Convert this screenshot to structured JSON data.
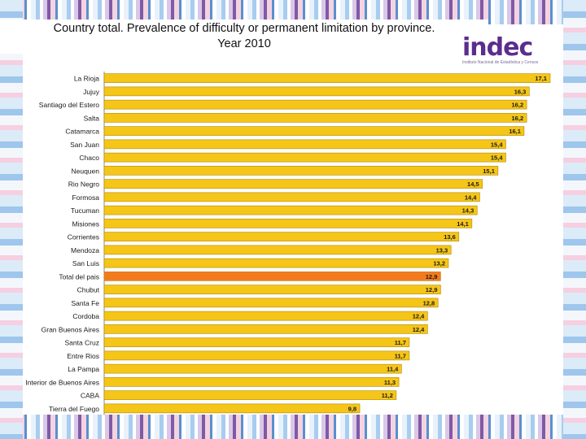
{
  "title_line1": "Country total. Prevalence of difficulty or permanent  limitation by province.",
  "title_line2": "Year 2010",
  "logo": {
    "text": "indec",
    "subtitle": "Instituto Nacional de Estadística y Censos"
  },
  "colors": {
    "bar": "#f5c518",
    "highlight": "#f47a20",
    "bar_border": "#b08a00"
  },
  "chart_data": {
    "type": "bar",
    "orientation": "horizontal",
    "title": "Country total. Prevalence of difficulty or permanent  limitation by province. Year 2010",
    "categories": [
      "La Rioja",
      "Jujuy",
      "Santiago del Estero",
      "Salta",
      "Catamarca",
      "San Juan",
      "Chaco",
      "Neuquen",
      "Rio Negro",
      "Formosa",
      "Tucuman",
      "Misiones",
      "Corrientes",
      "Mendoza",
      "San Luis",
      "Total del pais",
      "Chubut",
      "Santa Fe",
      "Cordoba",
      "Gran Buenos Aires",
      "Santa Cruz",
      "Entre Rios",
      "La Pampa",
      "Interior de Buenos Aires",
      "CABA",
      "Tierra del Fuego"
    ],
    "values": [
      17.1,
      16.3,
      16.2,
      16.2,
      16.1,
      15.4,
      15.4,
      15.1,
      14.5,
      14.4,
      14.3,
      14.1,
      13.6,
      13.3,
      13.2,
      12.9,
      12.9,
      12.8,
      12.4,
      12.4,
      11.7,
      11.7,
      11.4,
      11.3,
      11.2,
      9.8
    ],
    "labels": [
      "17,1",
      "16,3",
      "16,2",
      "16,2",
      "16,1",
      "15,4",
      "15,4",
      "15,1",
      "14,5",
      "14,4",
      "14,3",
      "14,1",
      "13,6",
      "13,3",
      "13,2",
      "12,9",
      "12,9",
      "12,8",
      "12,4",
      "12,4",
      "11,7",
      "11,7",
      "11,4",
      "11,3",
      "11,2",
      "9,8"
    ],
    "highlight_category": "Total del pais",
    "xlim": [
      0,
      17.6
    ],
    "grid": false,
    "legend": "none"
  }
}
